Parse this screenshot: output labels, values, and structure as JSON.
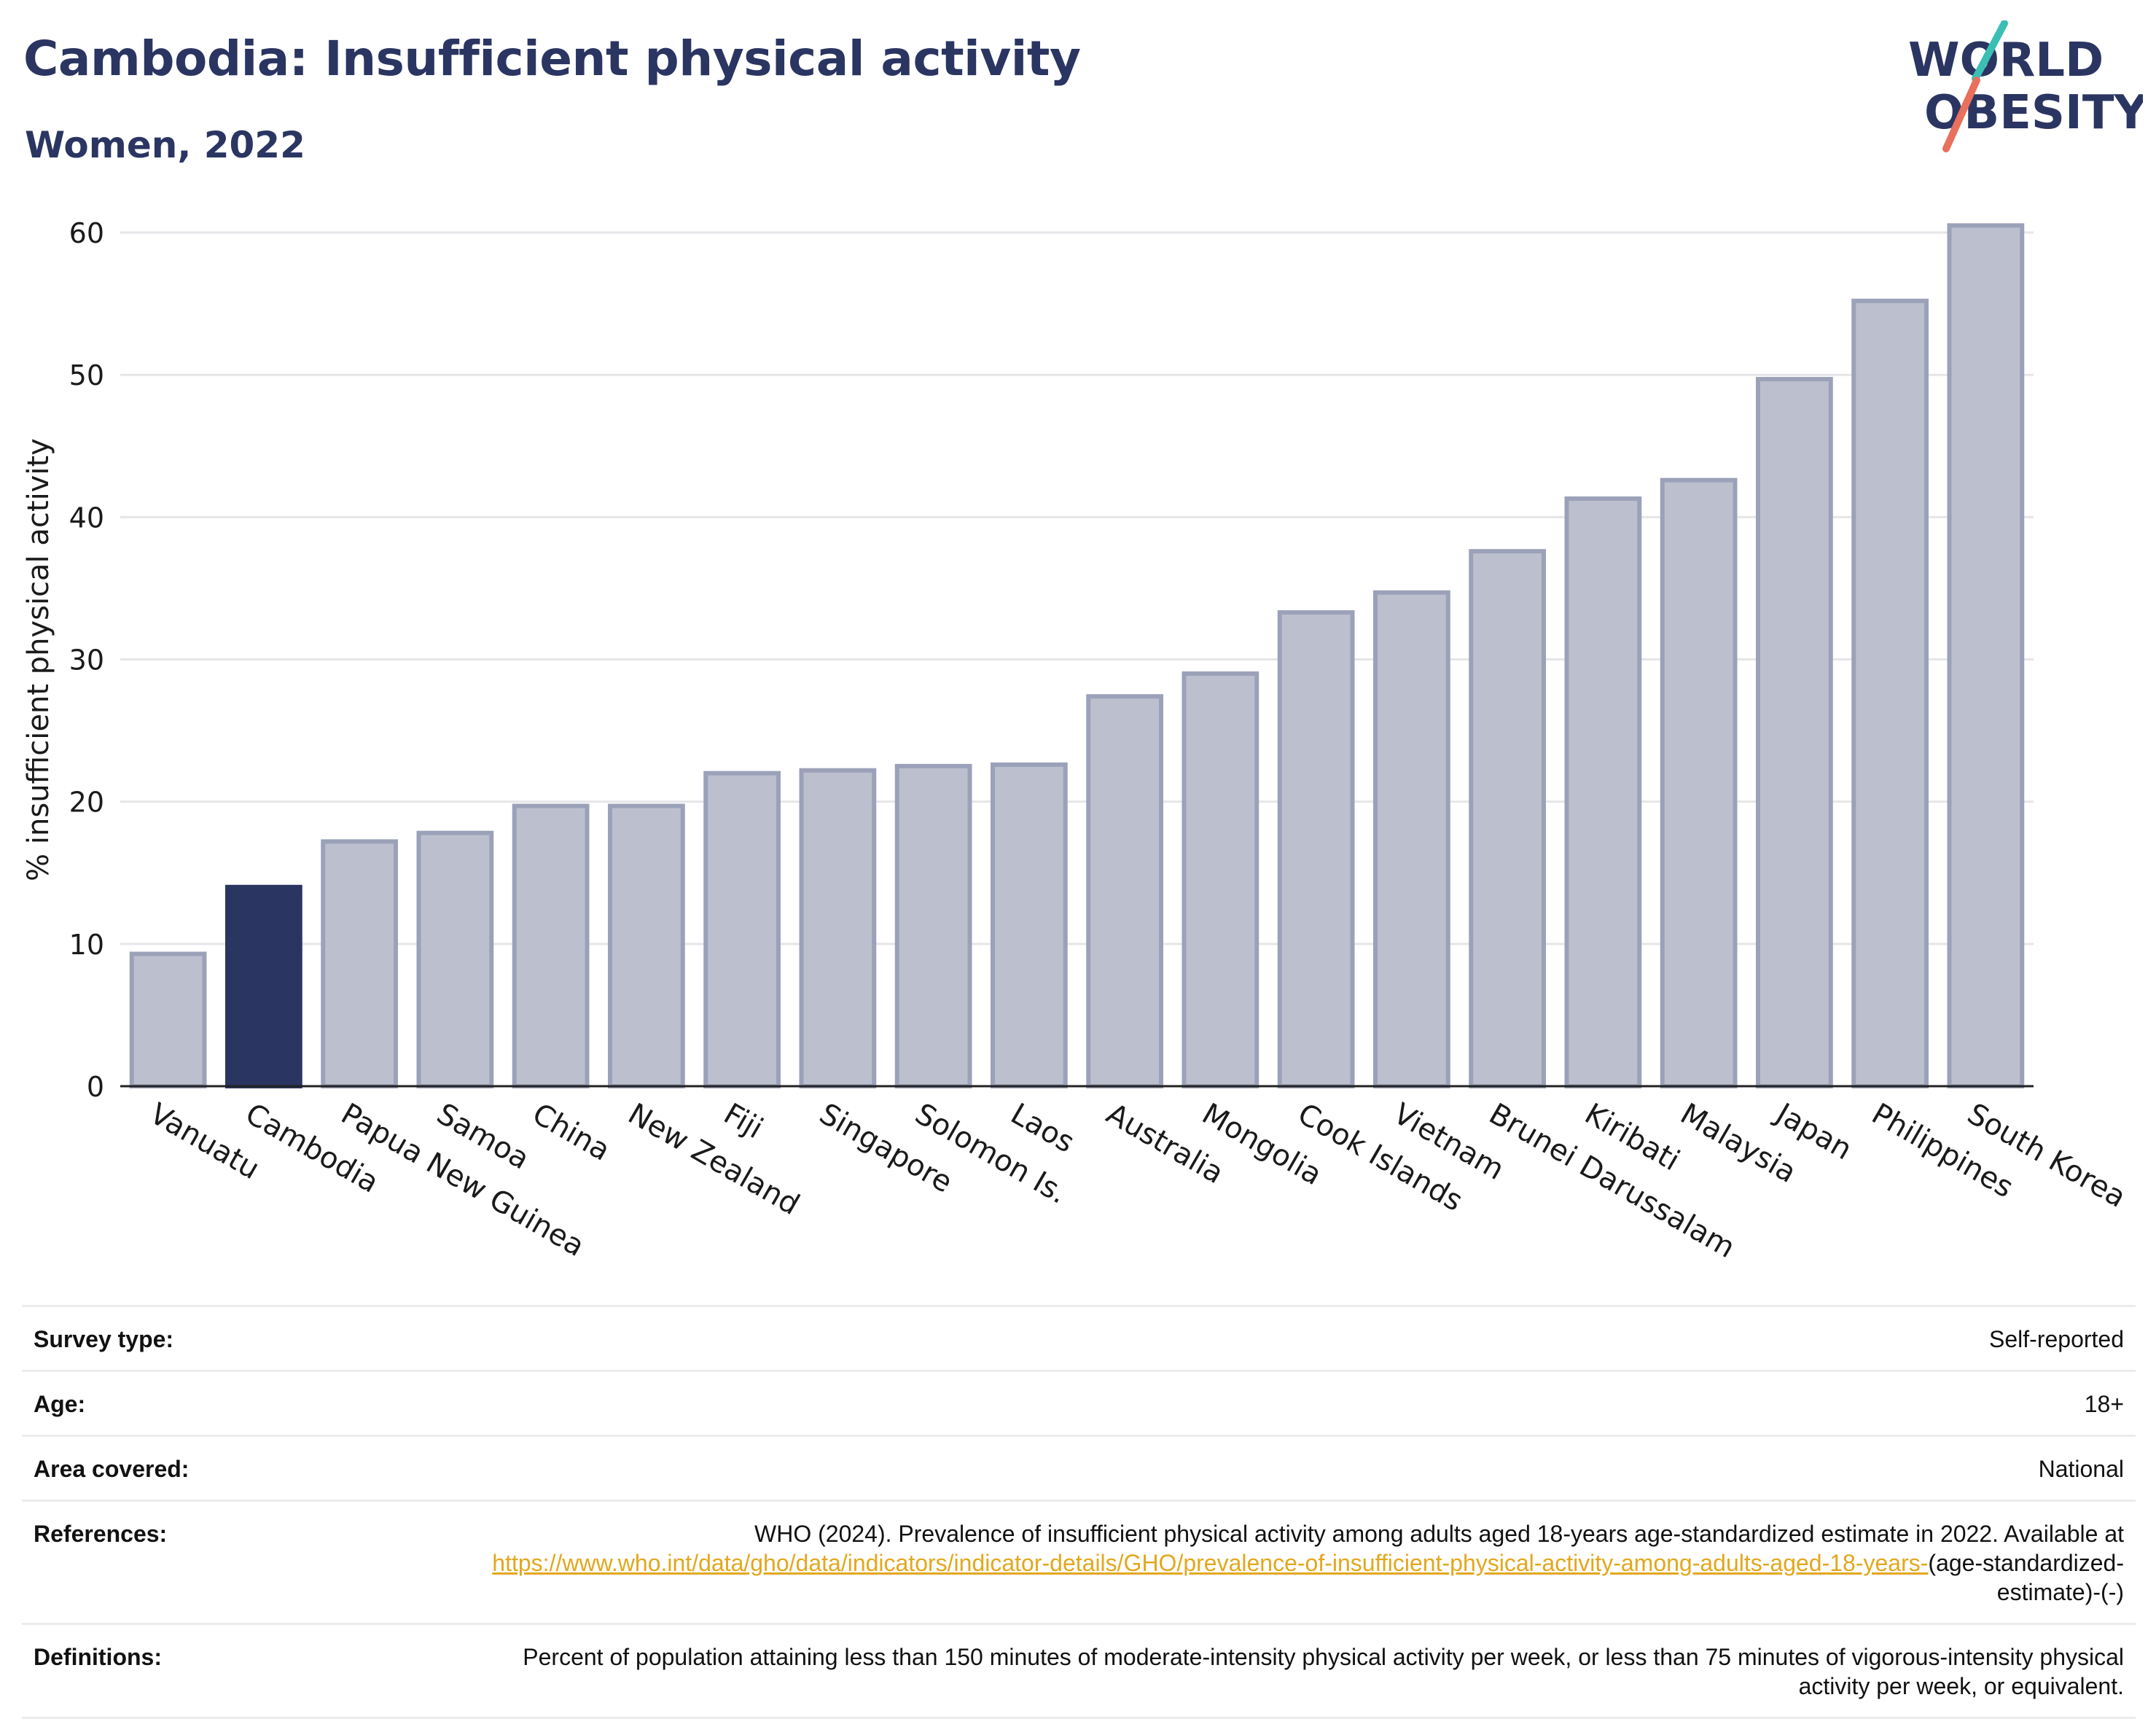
{
  "header": {
    "title": "Cambodia: Insufficient physical activity",
    "subtitle": "Women, 2022"
  },
  "logo": {
    "line1": "WORLD",
    "line2": "OBESITY",
    "accent_colors": [
      "#3bbfb5",
      "#e8705c"
    ],
    "text_color": "#2b3562"
  },
  "chart_data": {
    "type": "bar",
    "title": "Cambodia: Insufficient physical activity",
    "subtitle": "Women, 2022",
    "xlabel": "",
    "ylabel": "% insufficient physical activity",
    "ylim": [
      0,
      62
    ],
    "yticks": [
      0,
      10,
      20,
      30,
      40,
      50,
      60
    ],
    "grid": true,
    "highlight": "Cambodia",
    "colors": {
      "bar": "#bcc0ce",
      "bar_edge": "#9ba1b8",
      "highlight": "#2b3562"
    },
    "categories": [
      "Vanuatu",
      "Cambodia",
      "Papua New Guinea",
      "Samoa",
      "China",
      "New Zealand",
      "Fiji",
      "Singapore",
      "Solomon Is.",
      "Laos",
      "Australia",
      "Mongolia",
      "Cook Islands",
      "Vietnam",
      "Brunei Darussalam",
      "Kiribati",
      "Malaysia",
      "Japan",
      "Philippines",
      "South Korea"
    ],
    "values": [
      9.3,
      14.0,
      17.2,
      17.8,
      19.7,
      19.7,
      22.0,
      22.2,
      22.5,
      22.6,
      27.4,
      29.0,
      33.3,
      34.7,
      37.6,
      41.3,
      42.6,
      49.7,
      55.2,
      60.5
    ]
  },
  "info": {
    "survey_type": {
      "label": "Survey type:",
      "value": "Self-reported"
    },
    "age": {
      "label": "Age:",
      "value": "18+"
    },
    "area": {
      "label": "Area covered:",
      "value": "National"
    },
    "references": {
      "label": "References:",
      "text": "WHO (2024). Prevalence of insufficient physical activity among adults aged 18-years age-standardized estimate in 2022. Available at",
      "link": "https://www.who.int/data/gho/data/indicators/indicator-details/GHO/prevalence-of-insufficient-physical-activity-among-adults-aged-18-years-",
      "suffix": "(age-standardized-estimate)-(-)"
    },
    "definitions": {
      "label": "Definitions:",
      "value": "Percent of population attaining less than 150 minutes of moderate-intensity physical activity per week, or less than 75 minutes of vigorous-intensity physical activity per week, or equivalent."
    }
  }
}
